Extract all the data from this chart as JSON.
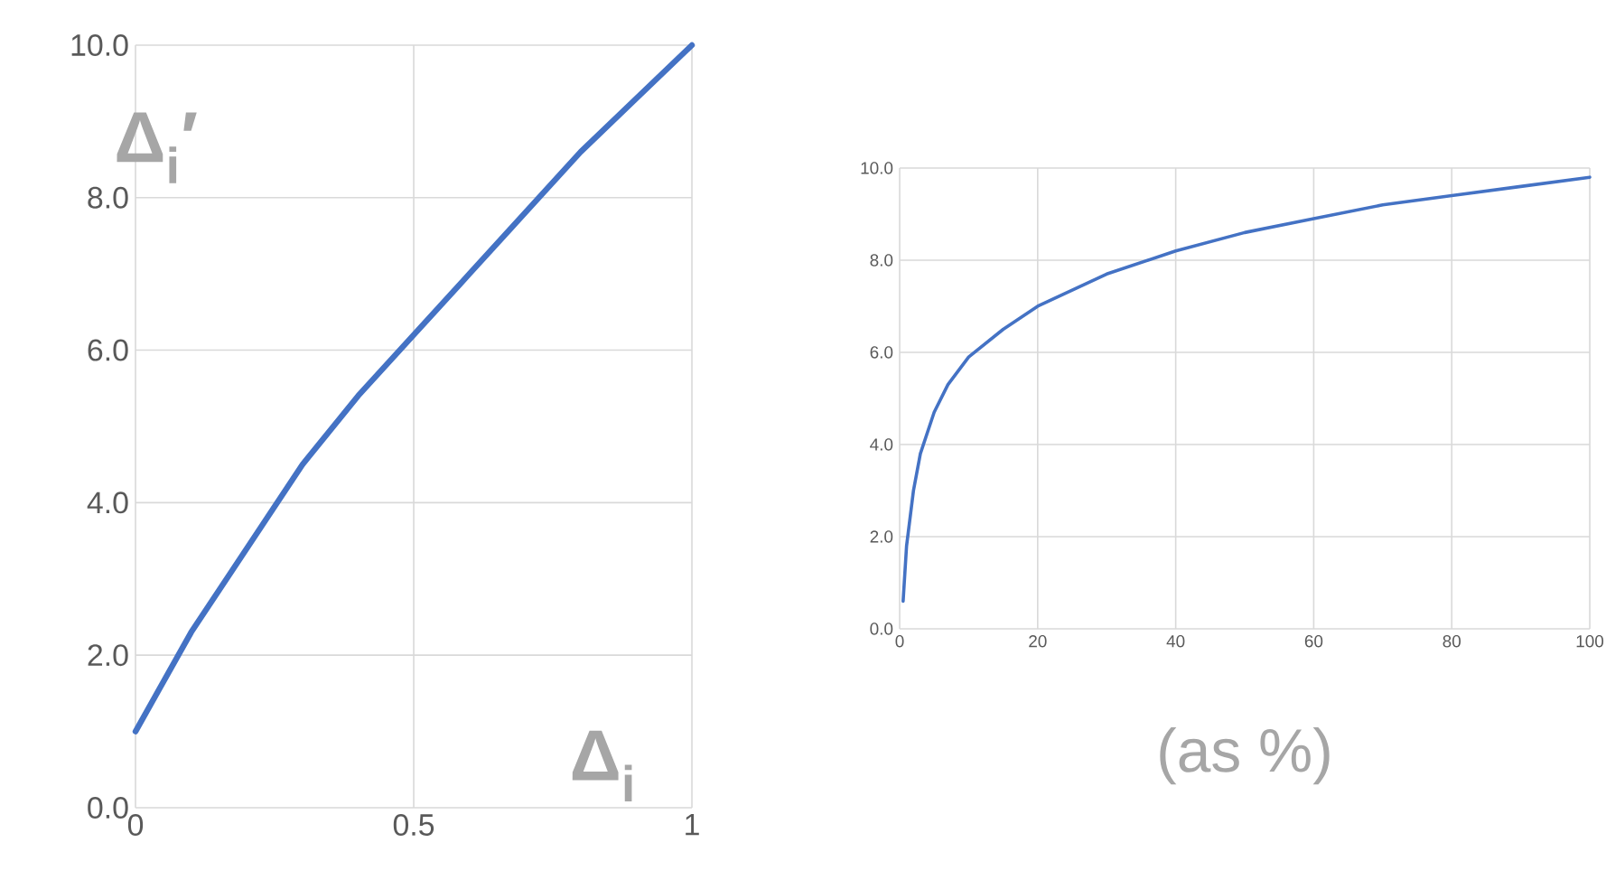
{
  "chart_data": [
    {
      "type": "line",
      "xlabel": "Δ$_{i}$",
      "ylabel": "Δ$_{i}$′",
      "x": [
        0,
        0.1,
        0.2,
        0.3,
        0.4,
        0.5,
        0.6,
        0.7,
        0.8,
        0.9,
        1
      ],
      "values": [
        1.0,
        2.3,
        3.4,
        4.5,
        5.4,
        6.2,
        7.0,
        7.8,
        8.6,
        9.3,
        10.0
      ],
      "color": "#4472c4",
      "xlim": [
        0,
        1
      ],
      "ylim": [
        0,
        10
      ],
      "xticks": [
        0,
        0.5,
        1
      ],
      "yticks": [
        {
          "value": 0,
          "label": "0.0"
        },
        {
          "value": 2,
          "label": "2.0"
        },
        {
          "value": 4,
          "label": "4.0"
        },
        {
          "value": 6,
          "label": "6.0"
        },
        {
          "value": 8,
          "label": "8.0"
        },
        {
          "value": 10,
          "label": "10.0"
        }
      ],
      "grid": true
    },
    {
      "type": "line",
      "xlabel": "(as %)",
      "x": [
        0.5,
        1,
        2,
        3,
        5,
        7,
        10,
        15,
        20,
        30,
        40,
        50,
        60,
        70,
        80,
        90,
        100
      ],
      "values": [
        0.6,
        1.8,
        3.0,
        3.8,
        4.7,
        5.3,
        5.9,
        6.5,
        7.0,
        7.7,
        8.2,
        8.6,
        8.9,
        9.2,
        9.4,
        9.6,
        9.8
      ],
      "color": "#4472c4",
      "xlim": [
        0,
        100
      ],
      "ylim": [
        0,
        10
      ],
      "xticks": [
        0,
        20,
        40,
        60,
        80,
        100
      ],
      "yticks": [
        {
          "value": 0,
          "label": "0.0"
        },
        {
          "value": 2,
          "label": "2.0"
        },
        {
          "value": 4,
          "label": "4.0"
        },
        {
          "value": 6,
          "label": "6.0"
        },
        {
          "value": 8,
          "label": "8.0"
        },
        {
          "value": 10,
          "label": "10.0"
        }
      ],
      "grid": true
    }
  ]
}
